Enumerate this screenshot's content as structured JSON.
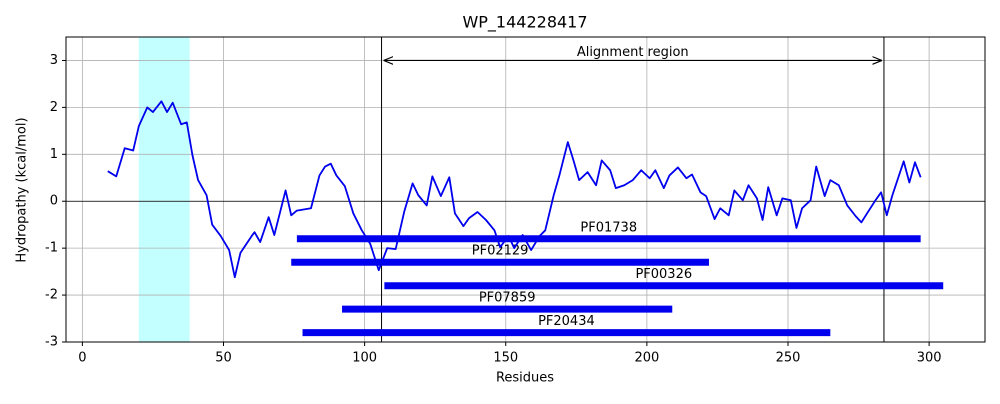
{
  "chart_data": {
    "type": "line",
    "title": "WP_144228417",
    "x_label": "Residues",
    "y_label": "Hydropathy (kcal/mol)",
    "xlim": [
      -5.8,
      319.8
    ],
    "ylim": [
      -3,
      3.5
    ],
    "xticks": [
      0,
      50,
      100,
      150,
      200,
      250,
      300
    ],
    "yticks": [
      -3,
      -2,
      -1,
      0,
      1,
      2,
      3
    ],
    "grid": true,
    "hline": 0,
    "vlines": [
      106,
      284
    ],
    "annotation": {
      "text": "Alignment region",
      "y": 3
    },
    "span": {
      "range": [
        20,
        38
      ],
      "color": "#c4ffff"
    },
    "series": [
      {
        "color": "#0000ee",
        "x": [
          9,
          12,
          15,
          18,
          20,
          23,
          25,
          28,
          30,
          32,
          35,
          37,
          39,
          41,
          44,
          46,
          49,
          52,
          54,
          56,
          60,
          61,
          63,
          66,
          68,
          72,
          74,
          76,
          81,
          84,
          86,
          88,
          90,
          93,
          96,
          99,
          102,
          105,
          108,
          111,
          114,
          117,
          119,
          122,
          124,
          127,
          130,
          132,
          135,
          137,
          140,
          143,
          146,
          148,
          151,
          153,
          156,
          159,
          162,
          164,
          167,
          169,
          172,
          174,
          176,
          179,
          182,
          184,
          187,
          189,
          192,
          195,
          198,
          201,
          203,
          206,
          208,
          211,
          214,
          216,
          219,
          221,
          224,
          226,
          229,
          231,
          234,
          236,
          239,
          241,
          243,
          246,
          248,
          251,
          253,
          255,
          258,
          260,
          263,
          265,
          268,
          271,
          274,
          276,
          278,
          281,
          283,
          285,
          287,
          291,
          293,
          295,
          297
        ],
        "values": [
          0.64,
          0.53,
          1.13,
          1.08,
          1.6,
          2.0,
          1.9,
          2.13,
          1.9,
          2.1,
          1.64,
          1.68,
          0.98,
          0.45,
          0.13,
          -0.5,
          -0.74,
          -1.04,
          -1.62,
          -1.1,
          -0.74,
          -0.66,
          -0.87,
          -0.34,
          -0.72,
          0.23,
          -0.3,
          -0.2,
          -0.15,
          0.55,
          0.74,
          0.8,
          0.55,
          0.32,
          -0.26,
          -0.62,
          -0.91,
          -1.47,
          -1.0,
          -1.02,
          -0.23,
          0.38,
          0.13,
          -0.09,
          0.53,
          0.11,
          0.51,
          -0.26,
          -0.53,
          -0.36,
          -0.23,
          -0.4,
          -0.62,
          -0.98,
          -0.74,
          -1.0,
          -0.72,
          -1.04,
          -0.74,
          -0.62,
          0.13,
          0.55,
          1.26,
          0.87,
          0.45,
          0.62,
          0.34,
          0.87,
          0.66,
          0.28,
          0.34,
          0.45,
          0.66,
          0.49,
          0.66,
          0.28,
          0.55,
          0.72,
          0.49,
          0.57,
          0.19,
          0.11,
          -0.38,
          -0.15,
          -0.3,
          0.23,
          0.02,
          0.34,
          0.06,
          -0.4,
          0.3,
          -0.3,
          0.06,
          0.02,
          -0.57,
          -0.15,
          0.02,
          0.74,
          0.11,
          0.45,
          0.34,
          -0.09,
          -0.32,
          -0.45,
          -0.26,
          0.02,
          0.19,
          -0.3,
          0.13,
          0.85,
          0.4,
          0.83,
          0.51
        ]
      }
    ],
    "domains": {
      "color": "#0000ee",
      "items": [
        {
          "name": "PF01738",
          "start": 76,
          "end": 297,
          "y": -0.8
        },
        {
          "name": "PF02129",
          "start": 74,
          "end": 222,
          "y": -1.3
        },
        {
          "name": "PF00326",
          "start": 107,
          "end": 305,
          "y": -1.8
        },
        {
          "name": "PF07859",
          "start": 92,
          "end": 209,
          "y": -2.3
        },
        {
          "name": "PF20434",
          "start": 78,
          "end": 265,
          "y": -2.8
        }
      ]
    }
  }
}
